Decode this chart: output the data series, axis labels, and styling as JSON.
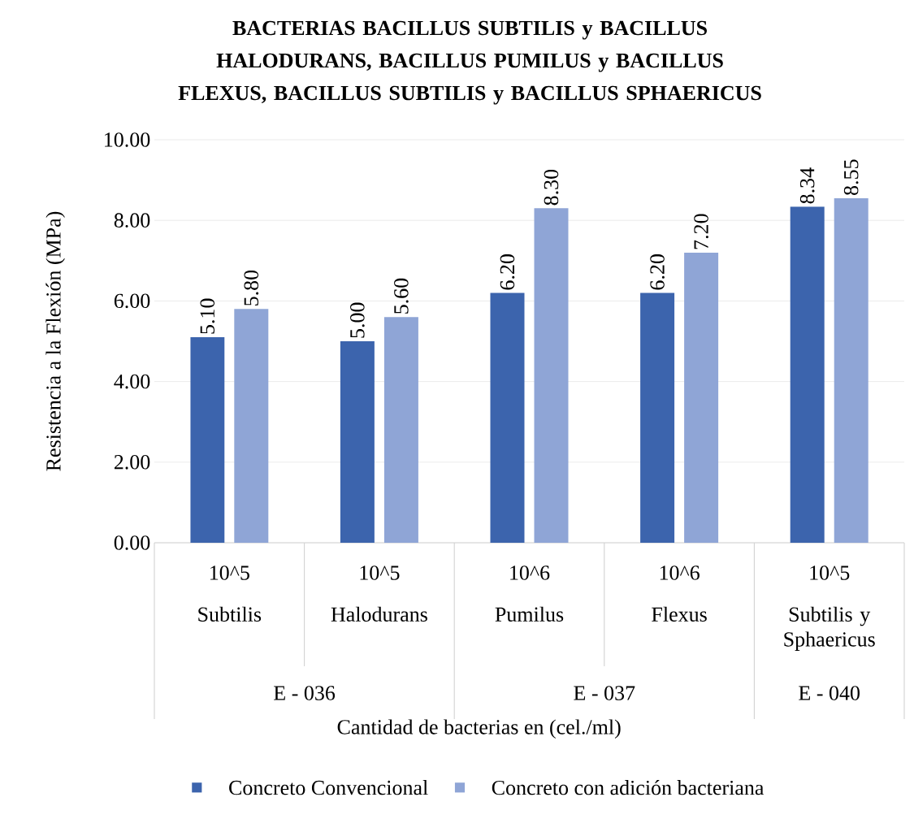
{
  "chart_data": {
    "type": "bar",
    "title": "BACTERIAS BACILLUS SUBTILIS y BACILLUS HALODURANS, BACILLUS PUMILUS y BACILLUS FLEXUS, BACILLUS SUBTILIS y BACILLUS SPHAERICUS",
    "xlabel": "Cantidad de bacterias en (cel./ml)",
    "ylabel": "Resistencia a la Flexión (MPa)",
    "categories": [
      "Subtilis",
      "Halodurans",
      "Pumilus",
      "Flexus",
      "Subtilis y Sphaericus"
    ],
    "annotations": [
      "10^5",
      "10^5",
      "10^6",
      "10^6",
      "10^5",
      "E - 036",
      "E - 037",
      "E - 040"
    ],
    "series": [
      {
        "name": "Concreto Convencional",
        "color": "#3c64ad",
        "values": [
          5.1,
          5.0,
          6.2,
          6.2,
          8.34
        ],
        "value_labels": [
          "5.10",
          "5.00",
          "6.20",
          "6.20",
          "8.34"
        ]
      },
      {
        "name": "Concreto con adición bacteriana",
        "color": "#8fa5d6",
        "values": [
          5.8,
          5.6,
          8.3,
          7.2,
          8.55
        ],
        "value_labels": [
          "5.80",
          "5.60",
          "8.30",
          "7.20",
          "8.55"
        ]
      }
    ],
    "ylim": [
      0,
      10
    ],
    "yticks": [
      {
        "value": 0,
        "label": "0.00"
      },
      {
        "value": 2,
        "label": "2.00"
      },
      {
        "value": 4,
        "label": "4.00"
      },
      {
        "value": 6,
        "label": "6.00"
      },
      {
        "value": 8,
        "label": "8.00"
      },
      {
        "value": 10,
        "label": "10.00"
      }
    ],
    "grid": "y",
    "legend": "bottom"
  }
}
